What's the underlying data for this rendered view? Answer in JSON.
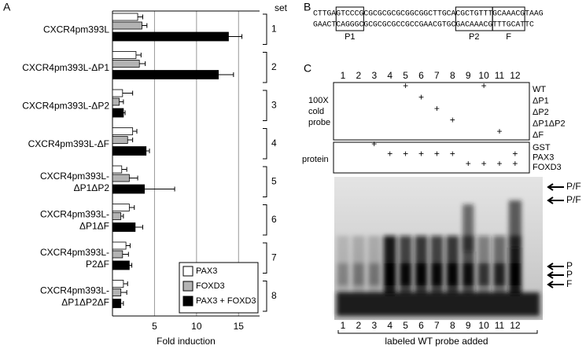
{
  "panel_labels": [
    "A",
    "B",
    "C"
  ],
  "chart_data": {
    "type": "bar",
    "orientation": "horizontal",
    "categories": [
      [
        "CXCR4pm393L"
      ],
      [
        "CXCR4pm393L-ΔP1"
      ],
      [
        "CXCR4pm393L-ΔP2"
      ],
      [
        "CXCR4pm393L-ΔF"
      ],
      [
        "CXCR4pm393L-",
        "ΔP1ΔP2"
      ],
      [
        "CXCR4pm393L-",
        "ΔP1ΔF"
      ],
      [
        "CXCR4pm393L-",
        "P2ΔF"
      ],
      [
        "CXCR4pm393L-",
        "ΔP1ΔP2ΔF"
      ]
    ],
    "series": [
      {
        "name": "PAX3",
        "color": "#ffffff",
        "values": [
          3.0,
          2.8,
          1.2,
          2.4,
          1.1,
          2.0,
          1.6,
          1.3
        ],
        "errors": [
          0.6,
          0.6,
          1.2,
          0.5,
          0.6,
          0.6,
          0.5,
          0.5
        ]
      },
      {
        "name": "FOXD3",
        "color": "#b3b3b3",
        "values": [
          3.5,
          3.2,
          0.8,
          1.8,
          2.0,
          1.0,
          1.2,
          1.0
        ],
        "errors": [
          0.6,
          0.7,
          0.5,
          0.6,
          1.0,
          0.3,
          0.7,
          0.7
        ]
      },
      {
        "name": "PAX3 + FOXD3",
        "color": "#000000",
        "values": [
          13.8,
          12.6,
          1.3,
          4.0,
          3.8,
          2.7,
          2.0,
          1.0
        ],
        "errors": [
          1.6,
          1.8,
          0.2,
          0.4,
          3.6,
          0.9,
          0.3,
          0.3
        ]
      }
    ],
    "xlim": [
      0,
      17.5
    ],
    "xticks": [
      5,
      10,
      15
    ],
    "grid": true,
    "xlabel": "Fold induction",
    "legend": "lower right",
    "set_title": "set",
    "sets": [
      "1",
      "2",
      "3",
      "4",
      "5",
      "6",
      "7",
      "8"
    ]
  },
  "sequence": {
    "top": "CTTGAGTCCCGCGCGCGCGCGGCGGCTTGCACGCTGTTTGCAAACGTAAG",
    "bottom": "GAACTCAGGGCGCGCGCGCCGCCGAACGTGCGACAAACGTTTGCATTC",
    "boxes": [
      "P1",
      "P2",
      "F"
    ]
  },
  "gel": {
    "lanes": [
      "1",
      "2",
      "3",
      "4",
      "5",
      "6",
      "7",
      "8",
      "9",
      "10",
      "11",
      "12"
    ],
    "cold_label": [
      "100X",
      "cold",
      "probe"
    ],
    "cold_rows": [
      {
        "label": "WT",
        "cells": [
          null,
          null,
          null,
          null,
          "+",
          null,
          null,
          null,
          null,
          "+",
          null,
          null
        ]
      },
      {
        "label": "ΔP1",
        "cells": [
          null,
          null,
          null,
          null,
          null,
          "+",
          null,
          null,
          null,
          null,
          null,
          null
        ]
      },
      {
        "label": "ΔP2",
        "cells": [
          null,
          null,
          null,
          null,
          null,
          null,
          "+",
          null,
          null,
          null,
          null,
          null
        ]
      },
      {
        "label": "ΔP1ΔP2",
        "cells": [
          null,
          null,
          null,
          null,
          null,
          null,
          null,
          "+",
          null,
          null,
          null,
          null
        ]
      },
      {
        "label": "ΔF",
        "cells": [
          null,
          null,
          null,
          null,
          null,
          null,
          null,
          null,
          null,
          null,
          "+",
          null
        ]
      }
    ],
    "protein_label": "protein",
    "protein_rows": [
      {
        "label": "GST",
        "cells": [
          null,
          null,
          "+",
          null,
          null,
          null,
          null,
          null,
          null,
          null,
          null,
          null
        ]
      },
      {
        "label": "PAX3",
        "cells": [
          null,
          null,
          null,
          "+",
          "+",
          "+",
          "+",
          "+",
          null,
          null,
          null,
          "+"
        ]
      },
      {
        "label": "FOXD3",
        "cells": [
          null,
          null,
          null,
          null,
          null,
          null,
          null,
          null,
          "+",
          "+",
          "+",
          "+"
        ]
      }
    ],
    "arrows": [
      "P/F",
      "P/F",
      "P",
      "P",
      "F"
    ],
    "footer": "labeled WT probe added"
  }
}
